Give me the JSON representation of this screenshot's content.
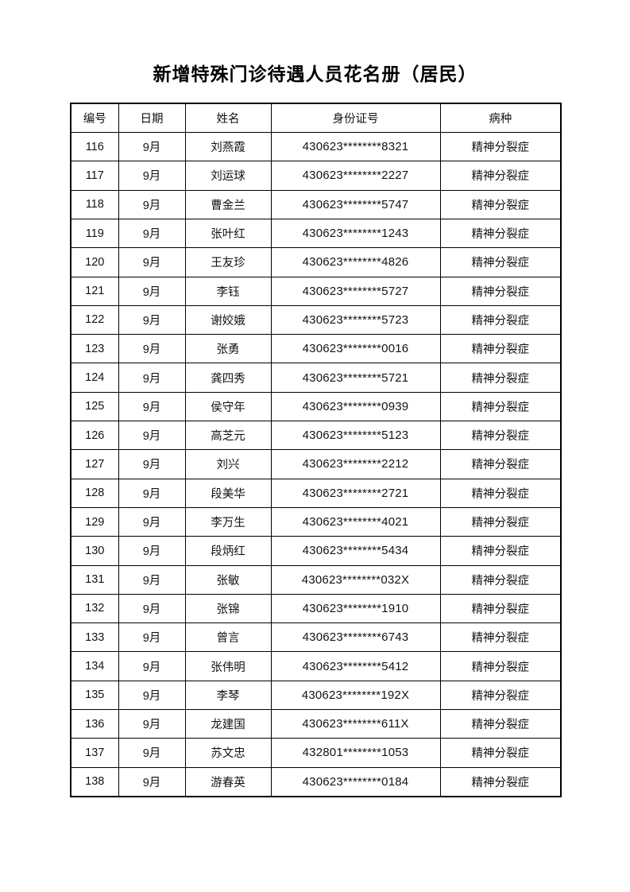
{
  "page": {
    "title": "新增特殊门诊待遇人员花名册（居民）"
  },
  "table": {
    "column_keys": [
      "number",
      "date",
      "name",
      "id",
      "disease"
    ],
    "headers": [
      "编号",
      "日期",
      "姓名",
      "身份证号",
      "病种"
    ],
    "rows": [
      [
        "116",
        "9月",
        "刘燕霞",
        "430623********8321",
        "精神分裂症"
      ],
      [
        "117",
        "9月",
        "刘运球",
        "430623********2227",
        "精神分裂症"
      ],
      [
        "118",
        "9月",
        "曹金兰",
        "430623********5747",
        "精神分裂症"
      ],
      [
        "119",
        "9月",
        "张叶红",
        "430623********1243",
        "精神分裂症"
      ],
      [
        "120",
        "9月",
        "王友珍",
        "430623********4826",
        "精神分裂症"
      ],
      [
        "121",
        "9月",
        "李钰",
        "430623********5727",
        "精神分裂症"
      ],
      [
        "122",
        "9月",
        "谢姣娥",
        "430623********5723",
        "精神分裂症"
      ],
      [
        "123",
        "9月",
        "张勇",
        "430623********0016",
        "精神分裂症"
      ],
      [
        "124",
        "9月",
        "龚四秀",
        "430623********5721",
        "精神分裂症"
      ],
      [
        "125",
        "9月",
        "侯守年",
        "430623********0939",
        "精神分裂症"
      ],
      [
        "126",
        "9月",
        "高芝元",
        "430623********5123",
        "精神分裂症"
      ],
      [
        "127",
        "9月",
        "刘兴",
        "430623********2212",
        "精神分裂症"
      ],
      [
        "128",
        "9月",
        "段美华",
        "430623********2721",
        "精神分裂症"
      ],
      [
        "129",
        "9月",
        "李万生",
        "430623********4021",
        "精神分裂症"
      ],
      [
        "130",
        "9月",
        "段炳红",
        "430623********5434",
        "精神分裂症"
      ],
      [
        "131",
        "9月",
        "张敏",
        "430623********032X",
        "精神分裂症"
      ],
      [
        "132",
        "9月",
        "张锦",
        "430623********1910",
        "精神分裂症"
      ],
      [
        "133",
        "9月",
        "曾言",
        "430623********6743",
        "精神分裂症"
      ],
      [
        "134",
        "9月",
        "张伟明",
        "430623********5412",
        "精神分裂症"
      ],
      [
        "135",
        "9月",
        "李琴",
        "430623********192X",
        "精神分裂症"
      ],
      [
        "136",
        "9月",
        "龙建国",
        "430623********611X",
        "精神分裂症"
      ],
      [
        "137",
        "9月",
        "苏文忠",
        "432801********1053",
        "精神分裂症"
      ],
      [
        "138",
        "9月",
        "游春英",
        "430623********0184",
        "精神分裂症"
      ]
    ]
  }
}
